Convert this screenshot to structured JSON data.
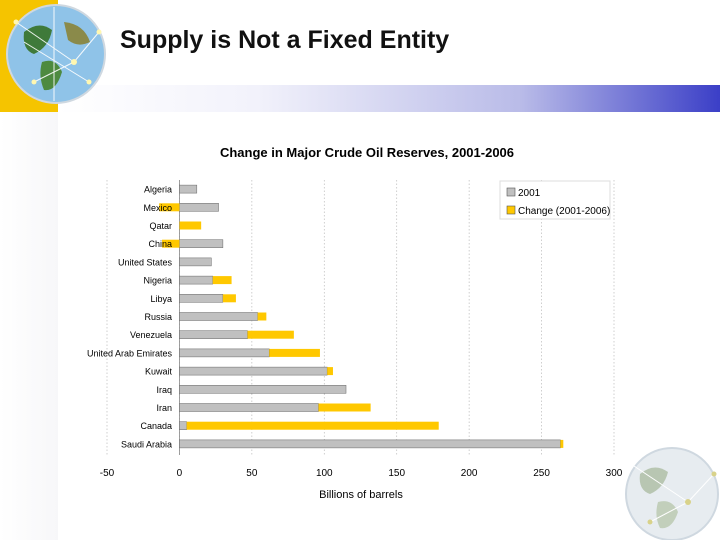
{
  "slide": {
    "title": "Supply is Not a Fixed Entity"
  },
  "colors": {
    "base_bar": "#c0c0c0",
    "change_bar": "#ffc800",
    "header_blue": "#3b3fc7",
    "accent_yellow": "#f5c400"
  },
  "chart_data": {
    "type": "bar",
    "orientation": "horizontal",
    "stacked": true,
    "title": "Change in Major Crude Oil Reserves, 2001-2006",
    "xlabel": "Billions of barrels",
    "ylabel": "",
    "xlim": [
      -50,
      300
    ],
    "xticks": [
      -50,
      0,
      50,
      100,
      150,
      200,
      250,
      300
    ],
    "grid": "vertical dotted",
    "legend_position": "top-right",
    "categories": [
      "Algeria",
      "Mexico",
      "Qatar",
      "China",
      "United States",
      "Nigeria",
      "Libya",
      "Russia",
      "Venezuela",
      "United Arab Emirates",
      "Kuwait",
      "Iraq",
      "Iran",
      "Canada",
      "Saudi Arabia"
    ],
    "series": [
      {
        "name": "2001",
        "values": [
          12,
          27,
          0,
          30,
          22,
          23,
          30,
          54,
          47,
          62,
          102,
          115,
          96,
          5,
          263
        ]
      },
      {
        "name": "Change (2001-2006)",
        "values": [
          0,
          -14,
          15,
          -12,
          0,
          13,
          9,
          6,
          32,
          35,
          4,
          0,
          36,
          174,
          2
        ]
      }
    ]
  }
}
